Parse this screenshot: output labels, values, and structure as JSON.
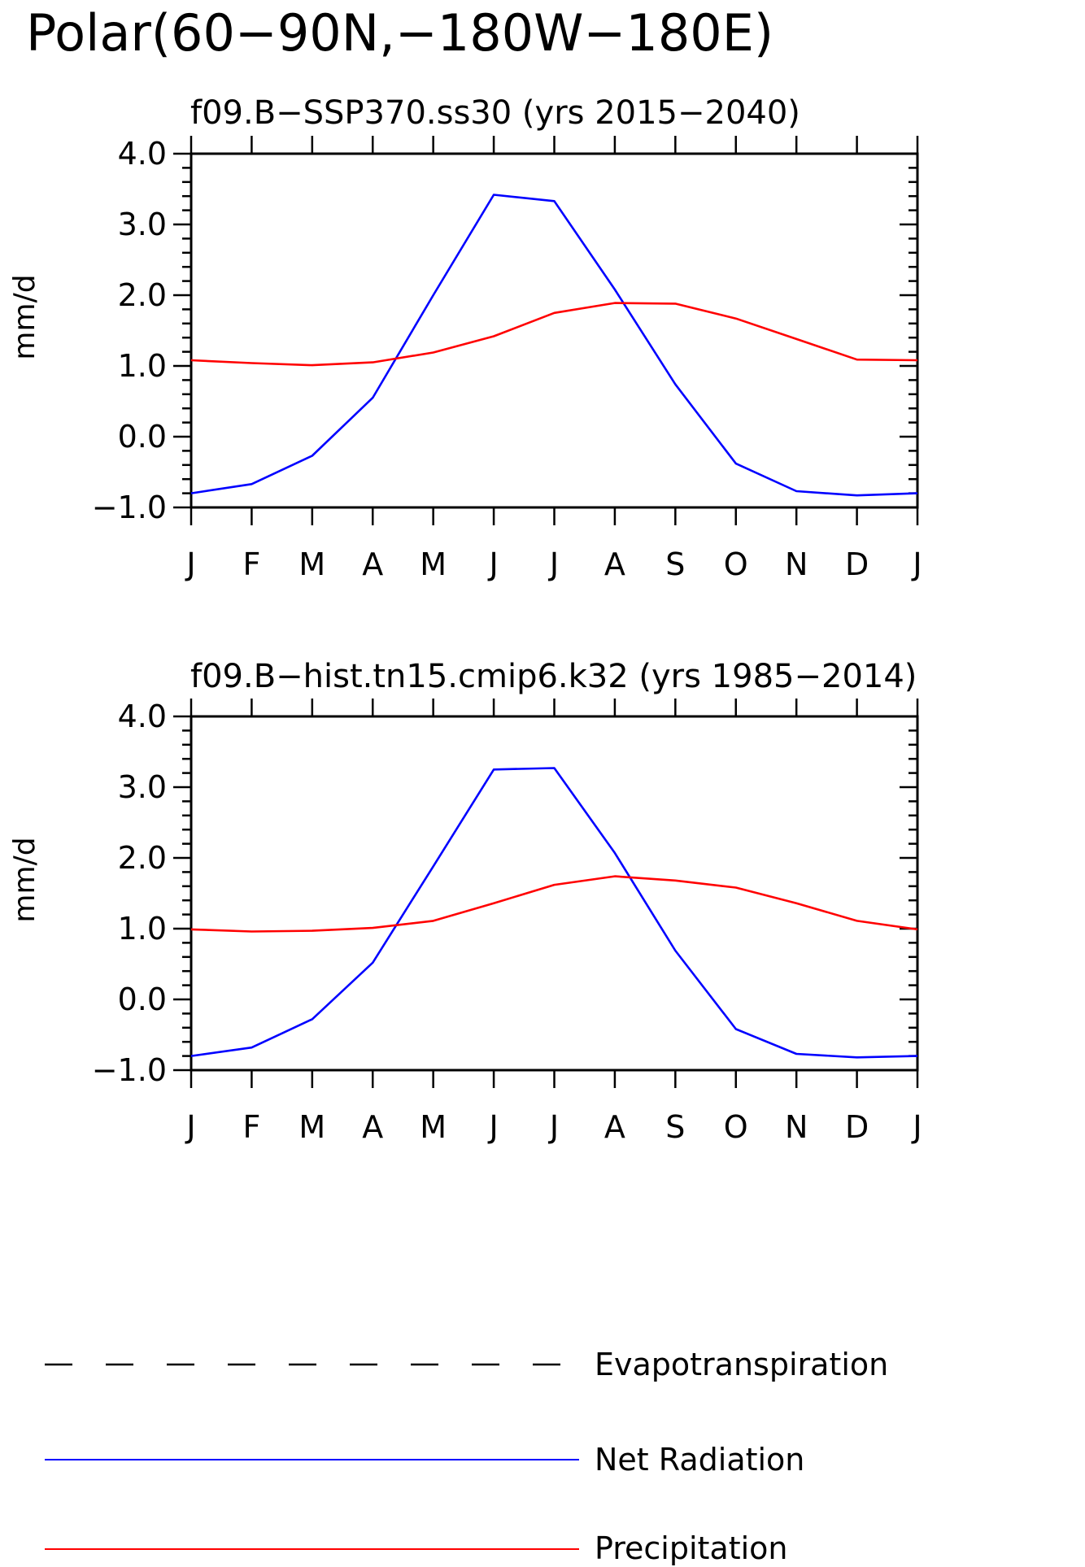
{
  "title": "Polar(60−90N,−180W−180E)",
  "chart_data": [
    {
      "type": "line",
      "title": "f09.B−SSP370.ss30 (yrs 2015−2040)",
      "ylabel": "mm/d",
      "xlabel": "",
      "ylim": [
        -1.0,
        4.0
      ],
      "yticks": [
        "4.0",
        "3.0",
        "2.0",
        "1.0",
        "0.0",
        "−1.0"
      ],
      "categories": [
        "J",
        "F",
        "M",
        "A",
        "M",
        "J",
        "J",
        "A",
        "S",
        "O",
        "N",
        "D",
        "J"
      ],
      "series": [
        {
          "name": "Net Radiation",
          "color": "#0000ff",
          "values": [
            -0.8,
            -0.67,
            -0.27,
            0.55,
            2.0,
            3.42,
            3.33,
            2.08,
            0.74,
            -0.38,
            -0.77,
            -0.83,
            -0.8
          ]
        },
        {
          "name": "Precipitation",
          "color": "#ff0000",
          "values": [
            1.08,
            1.04,
            1.01,
            1.05,
            1.19,
            1.42,
            1.75,
            1.89,
            1.88,
            1.67,
            1.38,
            1.09,
            1.08
          ]
        }
      ]
    },
    {
      "type": "line",
      "title": "f09.B−hist.tn15.cmip6.k32 (yrs 1985−2014)",
      "ylabel": "mm/d",
      "xlabel": "",
      "ylim": [
        -1.0,
        4.0
      ],
      "yticks": [
        "4.0",
        "3.0",
        "2.0",
        "1.0",
        "0.0",
        "−1.0"
      ],
      "categories": [
        "J",
        "F",
        "M",
        "A",
        "M",
        "J",
        "J",
        "A",
        "S",
        "O",
        "N",
        "D",
        "J"
      ],
      "series": [
        {
          "name": "Net Radiation",
          "color": "#0000ff",
          "values": [
            -0.8,
            -0.68,
            -0.28,
            0.52,
            1.88,
            3.25,
            3.27,
            2.07,
            0.69,
            -0.42,
            -0.77,
            -0.82,
            -0.8
          ]
        },
        {
          "name": "Precipitation",
          "color": "#ff0000",
          "values": [
            0.99,
            0.96,
            0.97,
            1.01,
            1.11,
            1.36,
            1.62,
            1.74,
            1.68,
            1.58,
            1.36,
            1.11,
            0.99
          ]
        }
      ]
    }
  ],
  "legend": [
    {
      "label": "Evapotranspiration",
      "color": "#000000",
      "style": "dashed"
    },
    {
      "label": "Net Radiation",
      "color": "#0000ff",
      "style": "solid"
    },
    {
      "label": "Precipitation",
      "color": "#ff0000",
      "style": "solid"
    }
  ]
}
